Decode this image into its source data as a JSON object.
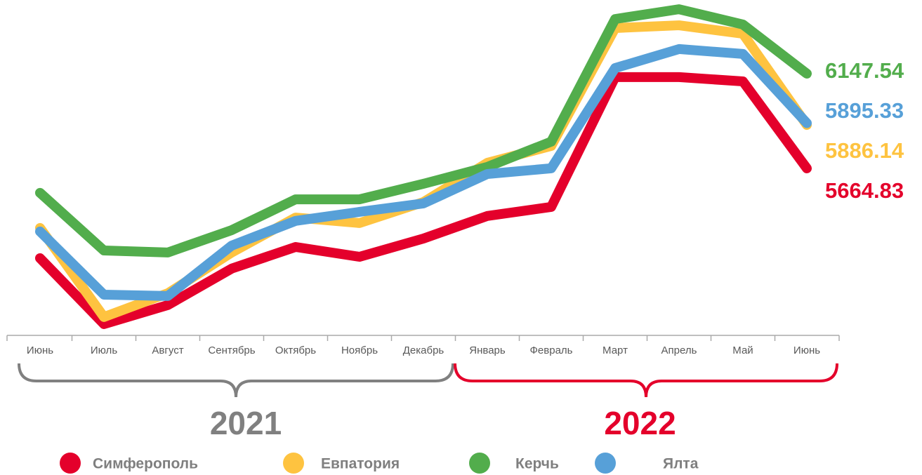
{
  "chart_data": {
    "type": "line",
    "categories": [
      "Июнь",
      "Июль",
      "Август",
      "Сентябрь",
      "Октябрь",
      "Ноябрь",
      "Декабрь",
      "Январь",
      "Февраль",
      "Март",
      "Апрель",
      "Май",
      "Июнь"
    ],
    "series": [
      {
        "name": "Симферополь",
        "color": "#e4002b",
        "values": [
          5207,
          4871,
          4968,
          5154,
          5264,
          5214,
          5307,
          5422,
          5468,
          6130,
          6130,
          6108,
          5664.83
        ]
      },
      {
        "name": "Евпатория",
        "color": "#fec340",
        "values": [
          5361,
          4907,
          5028,
          5236,
          5414,
          5386,
          5493,
          5693,
          5779,
          6380,
          6394,
          6351,
          5886.14
        ]
      },
      {
        "name": "Керчь",
        "color": "#52ad4c",
        "values": [
          5540,
          5246,
          5236,
          5350,
          5507,
          5507,
          5586,
          5672,
          5801,
          6426,
          6476,
          6398,
          6147.54
        ]
      },
      {
        "name": "Ялта",
        "color": "#57a0d8",
        "values": [
          5343,
          5021,
          5014,
          5271,
          5397,
          5443,
          5486,
          5636,
          5665,
          6176,
          6273,
          6248,
          5895.33
        ]
      }
    ],
    "ylim": [
      4842,
      6523
    ],
    "annotations": [
      {
        "text": "2021",
        "color": "#808080"
      },
      {
        "text": "2022",
        "color": "#e4002b"
      }
    ]
  }
}
